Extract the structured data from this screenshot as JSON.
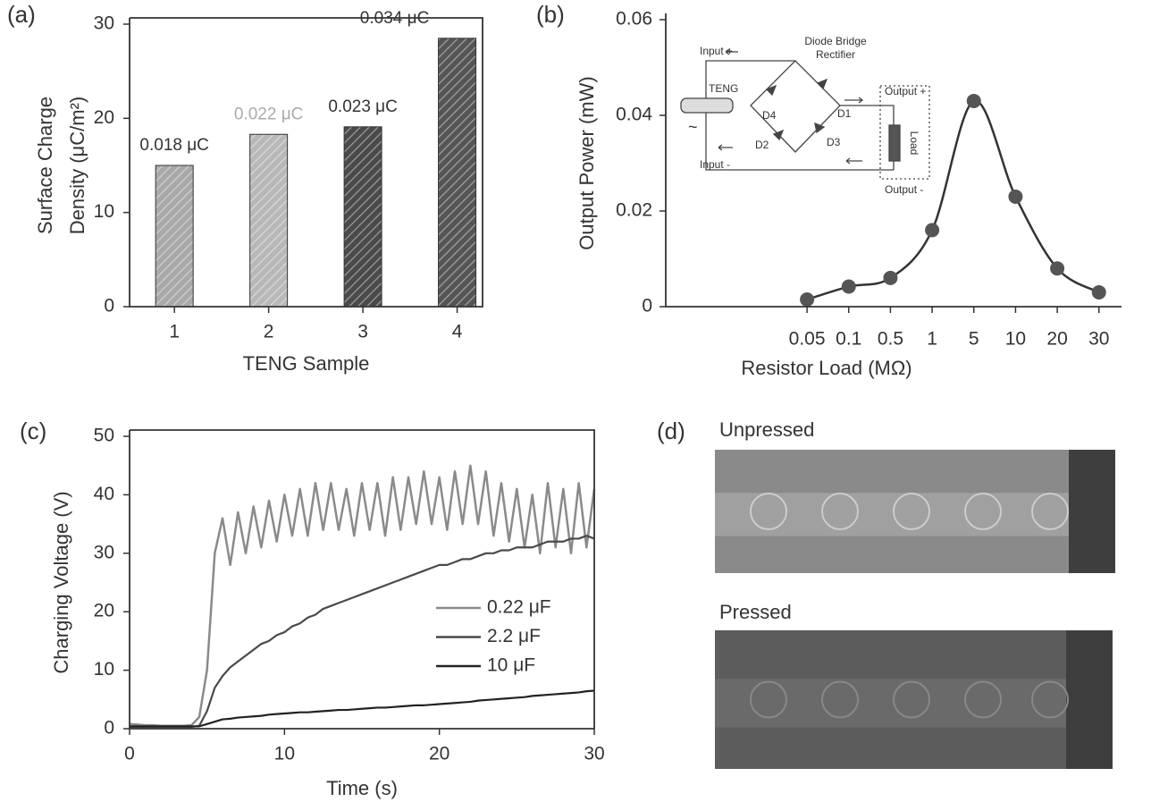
{
  "chart_data": [
    {
      "type": "bar",
      "panel_label": "(a)",
      "ylabel": [
        "Surface Charge",
        "Density (μC/m²)"
      ],
      "xlabel": "TENG Sample",
      "categories": [
        "1",
        "2",
        "3",
        "4"
      ],
      "values": [
        15,
        18.3,
        19.1,
        28.5
      ],
      "colors": [
        "#a8a8a8",
        "#b8b8b8",
        "#4a4a4a",
        "#555555"
      ],
      "annotations": [
        "0.018 μC",
        "0.022 μC",
        "0.023 μC",
        "0.034 μC"
      ],
      "annotation_colors": [
        "#333333",
        "#aaaaaa",
        "#333333",
        "#333333"
      ],
      "ylim": [
        0,
        30
      ],
      "yticks": [
        0,
        10,
        20,
        30
      ]
    },
    {
      "type": "line",
      "panel_label": "(b)",
      "ylabel": "Output Power (mW)",
      "xlabel": "Resistor Load (MΩ)",
      "categories": [
        "0.05",
        "0.1",
        "0.5",
        "1",
        "5",
        "10",
        "20",
        "30"
      ],
      "values": [
        0.0015,
        0.0042,
        0.006,
        0.016,
        0.043,
        0.023,
        0.008,
        0.003
      ],
      "color": "#555555",
      "ylim": [
        0,
        0.06
      ],
      "yticks": [
        0,
        0.02,
        0.04,
        0.06
      ],
      "inset": {
        "labels": [
          "Input +",
          "Diode Bridge",
          "Rectifier",
          "TENG",
          "D4",
          "D1",
          "Output +",
          "D2",
          "D3",
          "Load",
          "Input -",
          "Output -"
        ]
      }
    },
    {
      "type": "timeseries",
      "panel_label": "(c)",
      "ylabel": "Charging Voltage (V)",
      "xlabel": "Time (s)",
      "x": [
        0,
        0.5,
        1,
        1.5,
        2,
        2.5,
        3,
        3.5,
        4,
        4.5,
        5,
        5.5,
        6,
        6.5,
        7,
        7.5,
        8,
        8.5,
        9,
        9.5,
        10,
        10.5,
        11,
        11.5,
        12,
        12.5,
        13,
        13.5,
        14,
        14.5,
        15,
        15.5,
        16,
        16.5,
        17,
        17.5,
        18,
        18.5,
        19,
        19.5,
        20,
        20.5,
        21,
        21.5,
        22,
        22.5,
        23,
        23.5,
        24,
        24.5,
        25,
        25.5,
        26,
        26.5,
        27,
        27.5,
        28,
        28.5,
        29,
        29.5,
        30
      ],
      "series": [
        {
          "name": "0.22 μF",
          "color": "#8a8a8a",
          "values": [
            0.8,
            0.7,
            0.6,
            0.6,
            0.5,
            0.5,
            0.5,
            0.5,
            0.6,
            2,
            10,
            30,
            36,
            28,
            37,
            30,
            38,
            31,
            39,
            32,
            40,
            33,
            41,
            33,
            42,
            34,
            42,
            34,
            41,
            33,
            42,
            34,
            42,
            33,
            43,
            34,
            43,
            35,
            44,
            35,
            43,
            34,
            44,
            35,
            45,
            35,
            44,
            33,
            42,
            32,
            41,
            31,
            40,
            30,
            42,
            31,
            41,
            30,
            42,
            31,
            41
          ]
        },
        {
          "name": "2.2 μF",
          "color": "#4a4a4a",
          "values": [
            0.3,
            0.3,
            0.3,
            0.3,
            0.3,
            0.3,
            0.3,
            0.3,
            0.3,
            0.5,
            3,
            7,
            9,
            10.5,
            11.5,
            12.5,
            13.5,
            14.5,
            15,
            16,
            16.5,
            17.5,
            18,
            19,
            19.5,
            20.5,
            21,
            21.5,
            22,
            22.5,
            23,
            23.5,
            24,
            24.5,
            25,
            25.5,
            26,
            26.5,
            27,
            27.5,
            28,
            28,
            28.5,
            29,
            29,
            29.5,
            30,
            30,
            30.5,
            30.5,
            31,
            31,
            31,
            31.5,
            32,
            32,
            32,
            32.5,
            32.5,
            33,
            32.5
          ]
        },
        {
          "name": "10 μF",
          "color": "#222222",
          "values": [
            0.4,
            0.4,
            0.4,
            0.4,
            0.4,
            0.4,
            0.4,
            0.4,
            0.4,
            0.4,
            0.8,
            1.2,
            1.6,
            1.7,
            1.9,
            2.0,
            2.1,
            2.2,
            2.4,
            2.5,
            2.6,
            2.7,
            2.8,
            2.8,
            2.9,
            3.0,
            3.1,
            3.2,
            3.2,
            3.3,
            3.4,
            3.5,
            3.6,
            3.6,
            3.7,
            3.8,
            3.9,
            4.0,
            4.0,
            4.1,
            4.2,
            4.3,
            4.4,
            4.5,
            4.6,
            4.8,
            4.9,
            5.0,
            5.1,
            5.2,
            5.3,
            5.4,
            5.6,
            5.7,
            5.8,
            5.9,
            6.0,
            6.1,
            6.2,
            6.4,
            6.5
          ]
        }
      ],
      "xlim": [
        0,
        30
      ],
      "xticks": [
        0,
        10,
        20,
        30
      ],
      "ylim": [
        0,
        50
      ],
      "yticks": [
        0,
        10,
        20,
        30,
        40,
        50
      ]
    },
    {
      "type": "photo",
      "panel_label": "(d)",
      "captions": [
        "Unpressed",
        "Pressed"
      ]
    }
  ]
}
